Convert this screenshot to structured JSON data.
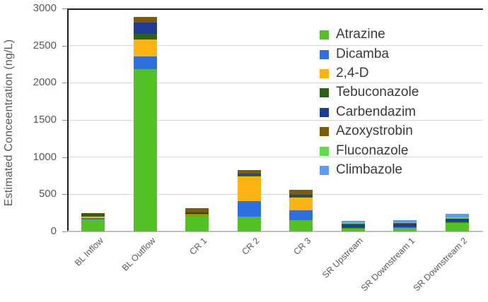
{
  "chart_data": {
    "type": "bar",
    "stacked": true,
    "title": "",
    "xlabel": "",
    "ylabel": "Estimated Conceentration (ng/L)",
    "ylim": [
      0,
      3000
    ],
    "ytick_interval": 500,
    "yticks": [
      0,
      500,
      1000,
      1500,
      2000,
      2500,
      3000
    ],
    "grid": "horizontal",
    "legend_position": "upper-right-inside",
    "categories": [
      "BL Inflow",
      "BL Outflow",
      "CR 1",
      "CR 2",
      "CR 3",
      "SR Upstream",
      "SR Downstream 1",
      "SR Downstream 2"
    ],
    "series": [
      {
        "name": "Atrazine",
        "color": "#54C226",
        "values": [
          160,
          2180,
          210,
          195,
          150,
          40,
          50,
          115
        ]
      },
      {
        "name": "Dicamba",
        "color": "#2F6FE0",
        "values": [
          20,
          170,
          10,
          215,
          135,
          5,
          5,
          5
        ]
      },
      {
        "name": "2,4-D",
        "color": "#FBB313",
        "values": [
          20,
          230,
          10,
          330,
          175,
          5,
          5,
          5
        ]
      },
      {
        "name": "Tebuconazole",
        "color": "#2D6414",
        "values": [
          25,
          80,
          15,
          25,
          15,
          10,
          5,
          5
        ]
      },
      {
        "name": "Carbendazim",
        "color": "#1E3C96",
        "values": [
          15,
          155,
          10,
          10,
          15,
          40,
          40,
          40
        ]
      },
      {
        "name": "Azoxystrobin",
        "color": "#7D5B0D",
        "values": [
          10,
          70,
          60,
          55,
          75,
          5,
          5,
          5
        ]
      },
      {
        "name": "Fluconazole",
        "color": "#62DB50",
        "values": [
          0,
          0,
          0,
          0,
          0,
          15,
          15,
          20
        ]
      },
      {
        "name": "Climbazole",
        "color": "#5C9BF3",
        "values": [
          0,
          0,
          0,
          0,
          0,
          25,
          30,
          45
        ]
      }
    ],
    "colors": {
      "gridline": "#D8D8D8",
      "axis_line_dark": "#1F1F1F",
      "axis_line_bottom": "#C3C3C3",
      "tick_mark": "#8C8C8C",
      "axis_text": "#595959",
      "legend_text": "#3A3A3A",
      "background": "#FFFFFF"
    }
  }
}
